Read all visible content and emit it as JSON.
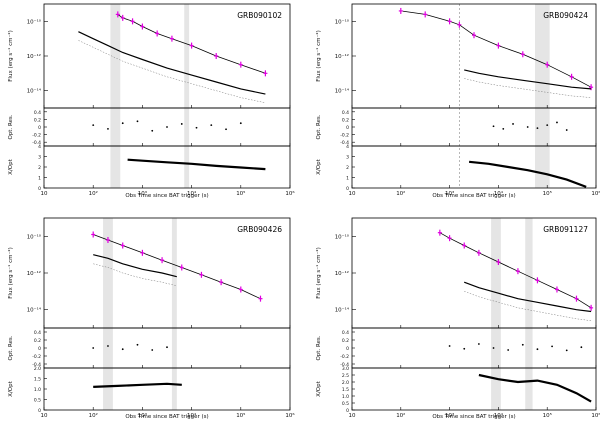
{
  "figure": {
    "x_label": "Obs Time since BAT trigger (s)",
    "flux_label": "Flux (erg s⁻¹ cm⁻²)",
    "res_label": "Opt. Res.",
    "ratio_label": "X/Opt"
  },
  "chart_data": [
    {
      "type": "line",
      "title": "GRB090102",
      "xlim_log": [
        1,
        6
      ],
      "x_ticks": [
        "10",
        "10²",
        "10³",
        "10⁴",
        "10⁵",
        "10⁶"
      ],
      "flux_ylim_log": [
        -15,
        -9
      ],
      "flux_ticks": [
        "10⁻¹⁰",
        "10⁻¹²",
        "10⁻¹⁴"
      ],
      "res_ticks": [
        "0.4",
        "0.2",
        "0",
        "-0.2",
        "-0.4"
      ],
      "ratio_ylim": [
        0,
        4
      ],
      "ratio_ticks": [
        "0",
        "1",
        "2",
        "3",
        "4"
      ],
      "shaded_x_log": [
        [
          2.35,
          2.55
        ],
        [
          3.85,
          3.95
        ]
      ],
      "dashed_x_log": [],
      "xray": {
        "x": [
          2.5,
          2.6,
          2.8,
          3.0,
          3.3,
          3.6,
          4.0,
          4.5,
          5.0,
          5.5
        ],
        "y": [
          -9.6,
          -9.8,
          -10.0,
          -10.3,
          -10.7,
          -11.0,
          -11.4,
          -12.0,
          -12.5,
          -13.0
        ]
      },
      "optical": {
        "x": [
          1.7,
          2.0,
          2.3,
          2.6,
          3.0,
          3.5,
          4.0,
          4.5,
          5.0,
          5.5
        ],
        "y": [
          -10.6,
          -11.0,
          -11.4,
          -11.8,
          -12.2,
          -12.7,
          -13.1,
          -13.5,
          -13.9,
          -14.2
        ]
      },
      "ratio_curve": {
        "x": [
          2.7,
          3.0,
          3.5,
          4.0,
          4.5,
          5.0,
          5.5
        ],
        "y": [
          2.7,
          2.6,
          2.45,
          2.3,
          2.1,
          1.95,
          1.8
        ]
      },
      "res_points": {
        "x": [
          2.0,
          2.3,
          2.6,
          2.9,
          3.2,
          3.5,
          3.8,
          4.1,
          4.4,
          4.7,
          5.0
        ],
        "y": [
          0.05,
          -0.05,
          0.1,
          0.15,
          -0.1,
          0.0,
          0.08,
          -0.02,
          0.05,
          -0.06,
          0.1
        ]
      }
    },
    {
      "type": "line",
      "title": "GRB090424",
      "xlim_log": [
        1,
        6
      ],
      "x_ticks": [
        "10",
        "10²",
        "10³",
        "10⁴",
        "10⁵",
        "10⁶"
      ],
      "flux_ylim_log": [
        -15,
        -9
      ],
      "flux_ticks": [
        "10⁻¹⁰",
        "10⁻¹²",
        "10⁻¹⁴"
      ],
      "res_ticks": [
        "0.4",
        "0.2",
        "0",
        "-0.2",
        "-0.4"
      ],
      "ratio_ylim": [
        0,
        4
      ],
      "ratio_ticks": [
        "0",
        "1",
        "2",
        "3",
        "4"
      ],
      "shaded_x_log": [
        [
          4.75,
          5.05
        ]
      ],
      "dashed_x_log": [
        3.2
      ],
      "xray": {
        "x": [
          2.0,
          2.5,
          3.0,
          3.2,
          3.5,
          4.0,
          4.5,
          5.0,
          5.5,
          5.9
        ],
        "y": [
          -9.4,
          -9.6,
          -10.0,
          -10.2,
          -10.8,
          -11.4,
          -11.9,
          -12.5,
          -13.2,
          -13.8
        ]
      },
      "optical": {
        "x": [
          3.3,
          3.6,
          4.0,
          4.5,
          5.0,
          5.5,
          5.9
        ],
        "y": [
          -12.8,
          -13.0,
          -13.2,
          -13.4,
          -13.6,
          -13.8,
          -13.9
        ]
      },
      "ratio_curve": {
        "x": [
          3.4,
          3.8,
          4.2,
          4.6,
          5.0,
          5.4,
          5.8
        ],
        "y": [
          2.5,
          2.3,
          2.0,
          1.7,
          1.3,
          0.8,
          0.1
        ]
      },
      "res_points": {
        "x": [
          3.9,
          4.1,
          4.3,
          4.6,
          4.8,
          5.0,
          5.2,
          5.4
        ],
        "y": [
          0.02,
          -0.05,
          0.08,
          0.0,
          -0.03,
          0.05,
          0.12,
          -0.08
        ]
      }
    },
    {
      "type": "line",
      "title": "GRB090426",
      "xlim_log": [
        1,
        6
      ],
      "x_ticks": [
        "10",
        "10²",
        "10³",
        "10⁴",
        "10⁵",
        "10⁶"
      ],
      "flux_ylim_log": [
        -15,
        -9
      ],
      "flux_ticks": [
        "10⁻¹⁰",
        "10⁻¹²",
        "10⁻¹⁴"
      ],
      "res_ticks": [
        "0.4",
        "0.2",
        "0",
        "-0.2",
        "-0.4"
      ],
      "ratio_ylim": [
        0,
        2
      ],
      "ratio_ticks": [
        "0",
        "0.5",
        "1.0",
        "1.5",
        "2.0"
      ],
      "shaded_x_log": [
        [
          2.2,
          2.4
        ],
        [
          3.6,
          3.7
        ]
      ],
      "dashed_x_log": [],
      "xray": {
        "x": [
          2.0,
          2.3,
          2.6,
          3.0,
          3.4,
          3.8,
          4.2,
          4.6,
          5.0,
          5.4
        ],
        "y": [
          -9.9,
          -10.2,
          -10.5,
          -10.9,
          -11.3,
          -11.7,
          -12.1,
          -12.5,
          -12.9,
          -13.4
        ]
      },
      "optical": {
        "x": [
          2.0,
          2.3,
          2.6,
          3.0,
          3.4,
          3.7
        ],
        "y": [
          -11.0,
          -11.2,
          -11.5,
          -11.8,
          -12.0,
          -12.2
        ]
      },
      "ratio_curve": {
        "x": [
          2.0,
          2.5,
          3.0,
          3.5,
          3.8
        ],
        "y": [
          1.1,
          1.15,
          1.2,
          1.25,
          1.2
        ]
      },
      "res_points": {
        "x": [
          2.0,
          2.3,
          2.6,
          2.9,
          3.2,
          3.5
        ],
        "y": [
          0.0,
          0.05,
          -0.03,
          0.08,
          -0.05,
          0.02
        ]
      }
    },
    {
      "type": "line",
      "title": "GRB091127",
      "xlim_log": [
        1,
        6
      ],
      "x_ticks": [
        "10",
        "10²",
        "10³",
        "10⁴",
        "10⁵",
        "10⁶"
      ],
      "flux_ylim_log": [
        -15,
        -9
      ],
      "flux_ticks": [
        "10⁻¹⁰",
        "10⁻¹²",
        "10⁻¹⁴"
      ],
      "res_ticks": [
        "0.4",
        "0.2",
        "0",
        "-0.2",
        "-0.4"
      ],
      "ratio_ylim": [
        0,
        3
      ],
      "ratio_ticks": [
        "0",
        "0.5",
        "1.0",
        "1.5",
        "2.0",
        "2.5",
        "3.0"
      ],
      "shaded_x_log": [
        [
          3.85,
          4.05
        ],
        [
          4.55,
          4.7
        ]
      ],
      "dashed_x_log": [],
      "xray": {
        "x": [
          2.8,
          3.0,
          3.3,
          3.6,
          4.0,
          4.4,
          4.8,
          5.2,
          5.6,
          5.9
        ],
        "y": [
          -9.8,
          -10.1,
          -10.5,
          -10.9,
          -11.4,
          -11.9,
          -12.4,
          -12.9,
          -13.4,
          -13.9
        ]
      },
      "optical": {
        "x": [
          3.3,
          3.6,
          4.0,
          4.4,
          4.8,
          5.2,
          5.6,
          5.9
        ],
        "y": [
          -12.5,
          -12.8,
          -13.1,
          -13.4,
          -13.6,
          -13.8,
          -14.0,
          -14.1
        ]
      },
      "ratio_curve": {
        "x": [
          3.6,
          4.0,
          4.4,
          4.8,
          5.2,
          5.6,
          5.9
        ],
        "y": [
          2.5,
          2.2,
          2.0,
          2.1,
          1.8,
          1.2,
          0.6
        ]
      },
      "res_points": {
        "x": [
          3.0,
          3.3,
          3.6,
          3.9,
          4.2,
          4.5,
          4.8,
          5.1,
          5.4,
          5.7
        ],
        "y": [
          0.05,
          -0.02,
          0.1,
          0.0,
          -0.05,
          0.08,
          -0.03,
          0.04,
          -0.06,
          0.02
        ]
      }
    }
  ]
}
